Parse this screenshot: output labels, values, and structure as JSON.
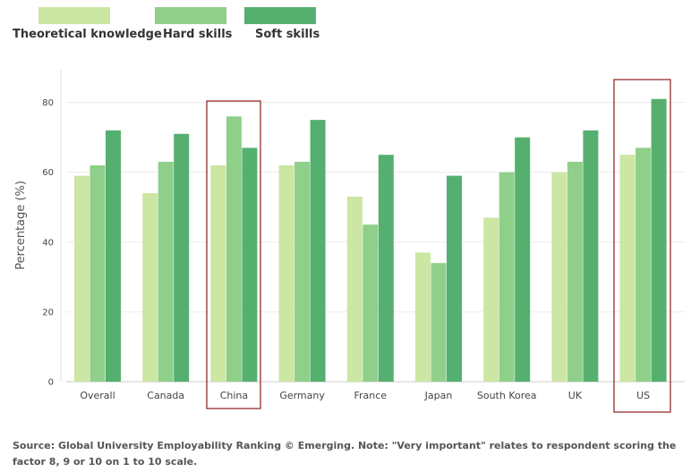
{
  "chart_data": {
    "type": "bar",
    "categories": [
      "Overall",
      "Canada",
      "China",
      "Germany",
      "France",
      "Japan",
      "South Korea",
      "UK",
      "US"
    ],
    "series": [
      {
        "name": "Theoretical knowledge",
        "values": [
          59,
          54,
          62,
          62,
          53,
          37,
          47,
          60,
          65
        ],
        "color": "#cce6a3"
      },
      {
        "name": "Hard skills",
        "values": [
          62,
          63,
          76,
          63,
          45,
          34,
          60,
          63,
          67
        ],
        "color": "#8fcf8a"
      },
      {
        "name": "Soft skills",
        "values": [
          72,
          71,
          67,
          75,
          65,
          59,
          70,
          72,
          81
        ],
        "color": "#55b070"
      }
    ],
    "title": "",
    "xlabel": "",
    "ylabel": "Percentage (%)",
    "ylim": [
      0,
      90
    ],
    "yticks": [
      0,
      20,
      40,
      60,
      80
    ],
    "grid": true,
    "legend_position": "top-left",
    "highlighted_categories": [
      "China",
      "US"
    ],
    "highlight_color": "#8b1a1a"
  },
  "source_note": "Source: Global University Employability Ranking © Emerging. Note: \"Very important\" relates to respondent scoring the factor 8, 9 or 10 on 1 to 10 scale."
}
